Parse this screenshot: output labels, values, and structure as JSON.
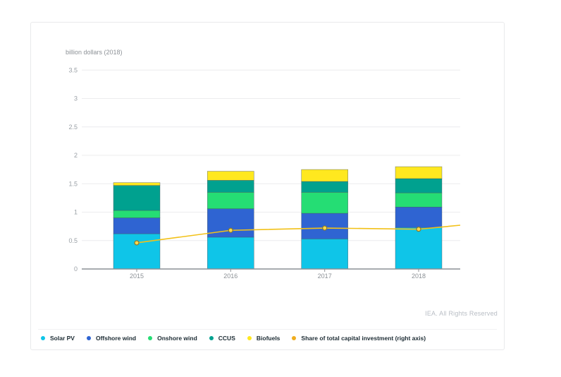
{
  "card": {
    "attribution": "IEA. All Rights Reserved"
  },
  "chart_data": {
    "type": "bar",
    "stacked": true,
    "title": "",
    "xlabel": "",
    "ylabel": "billion dollars (2018)",
    "categories": [
      "2015",
      "2016",
      "2017",
      "2018"
    ],
    "series": [
      {
        "name": "Solar PV",
        "color": "#0fc5e8",
        "values": [
          0.62,
          0.56,
          0.53,
          0.73
        ]
      },
      {
        "name": "Offshore wind",
        "color": "#2f64d2",
        "values": [
          0.28,
          0.5,
          0.45,
          0.36
        ]
      },
      {
        "name": "Onshore wind",
        "color": "#25dd74",
        "values": [
          0.13,
          0.29,
          0.37,
          0.25
        ]
      },
      {
        "name": "CCUS",
        "color": "#00a18f",
        "values": [
          0.44,
          0.21,
          0.19,
          0.25
        ]
      },
      {
        "name": "Biofuels",
        "color": "#ffe81f",
        "values": [
          0.05,
          0.16,
          0.21,
          0.21
        ]
      }
    ],
    "bar_totals": [
      1.52,
      1.72,
      1.75,
      1.8
    ],
    "line_series": {
      "name": "Share of total capital investment (right axis)",
      "color": "#f2c118",
      "legend_color": "#f0ad1e",
      "axis": "right",
      "values_left_axis_scale": [
        0.46,
        0.68,
        0.72,
        0.7
      ],
      "right_edge_value_left_axis_scale": 0.77
    },
    "y_ticks": [
      0,
      0.5,
      1,
      1.5,
      2,
      2.5,
      3,
      3.5
    ],
    "ylim": [
      0,
      3.5
    ],
    "grid": true,
    "legend_position": "bottom",
    "colors": {
      "grid": "#ececee",
      "axis": "#8c9196",
      "tick_text": "#9aa0a6",
      "bar_outline": "#44535c",
      "marker_fill": "#ffd94d",
      "marker_stroke": "#8a7a2a"
    }
  }
}
